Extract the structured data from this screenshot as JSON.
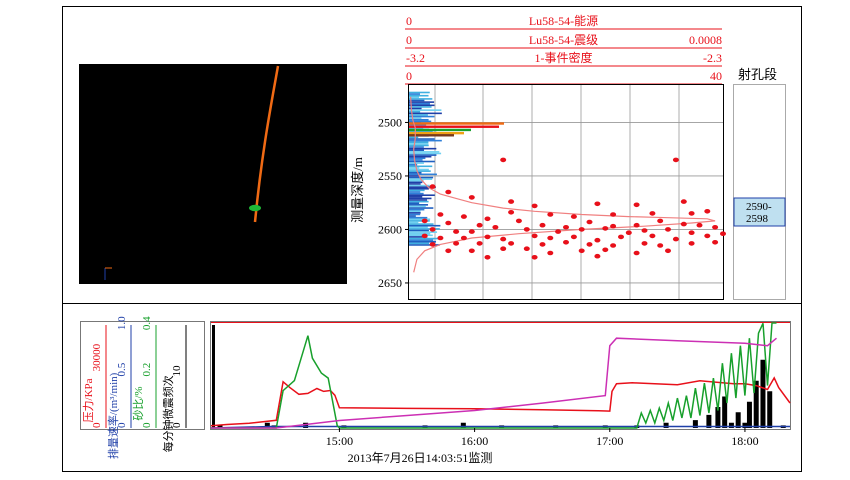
{
  "colors": {
    "red": "#e8101a",
    "blue": "#1f3fa8",
    "green": "#18a02c",
    "black": "#000000",
    "magenta": "#cc2fb4",
    "orange": "#f06a14",
    "seis_green": "#1fb836",
    "perf_box": "#bfe0f0",
    "pink": "#f08080"
  },
  "scale_bars": [
    {
      "left": "0",
      "title": "Lu58-54-能源",
      "right": ""
    },
    {
      "left": "0",
      "title": "Lu58-54-震级",
      "right": "0.0008"
    },
    {
      "left": "-3.2",
      "title": "1-事件密度",
      "right": "-2.3"
    },
    {
      "left": "0",
      "title": "",
      "right": "40"
    }
  ],
  "depth_axis": {
    "label": "测量深度/m",
    "ticks": [
      "2500",
      "2550",
      "2600",
      "2650"
    ]
  },
  "perforation": {
    "title": "射孔段",
    "label_line1": "2590-",
    "label_line2": "2598"
  },
  "left_axes": [
    {
      "label": "压力/KPa",
      "ticks": [
        "0",
        "30000"
      ],
      "color": "#e8101a"
    },
    {
      "label": "排量速率/(m³/min)",
      "ticks": [
        "0",
        "0.5",
        "1.0"
      ],
      "color": "#1f3fa8"
    },
    {
      "label": "砂比/%",
      "ticks": [
        "0",
        "0.2",
        "0.4"
      ],
      "color": "#18a02c"
    },
    {
      "label": "每分钟微震频次",
      "ticks": [
        "0",
        "10"
      ],
      "color": "#000000"
    }
  ],
  "time_axis": {
    "ticks": [
      "15:00",
      "16:00",
      "17:00",
      "18:00"
    ]
  },
  "caption": "2013年7月26日14:03:51监测",
  "chart_data": [
    {
      "type": "scatter",
      "title": "",
      "ylabel": "测量深度/m",
      "ylim": [
        2665,
        2465
      ],
      "xlim": [
        0,
        40
      ],
      "points": [
        [
          12,
          2535
        ],
        [
          34,
          2535
        ],
        [
          3,
          2560
        ],
        [
          5,
          2565
        ],
        [
          8,
          2570
        ],
        [
          13,
          2574
        ],
        [
          16,
          2578
        ],
        [
          24,
          2576
        ],
        [
          29,
          2577
        ],
        [
          35,
          2574
        ],
        [
          38,
          2583
        ],
        [
          4,
          2586
        ],
        [
          7,
          2588
        ],
        [
          10,
          2590
        ],
        [
          13,
          2584
        ],
        [
          18,
          2586
        ],
        [
          21,
          2588
        ],
        [
          26,
          2586
        ],
        [
          31,
          2585
        ],
        [
          36,
          2585
        ],
        [
          2,
          2592
        ],
        [
          5,
          2594
        ],
        [
          9,
          2596
        ],
        [
          14,
          2592
        ],
        [
          17,
          2596
        ],
        [
          20,
          2598
        ],
        [
          23,
          2593
        ],
        [
          26,
          2597
        ],
        [
          29,
          2596
        ],
        [
          32,
          2592
        ],
        [
          35,
          2595
        ],
        [
          37,
          2596
        ],
        [
          3,
          2600
        ],
        [
          6,
          2602
        ],
        [
          8,
          2602
        ],
        [
          11,
          2598
        ],
        [
          15,
          2600
        ],
        [
          19,
          2602
        ],
        [
          22,
          2600
        ],
        [
          25,
          2599
        ],
        [
          28,
          2603
        ],
        [
          30,
          2601
        ],
        [
          33,
          2600
        ],
        [
          36,
          2603
        ],
        [
          39,
          2598
        ],
        [
          2,
          2606
        ],
        [
          4,
          2608
        ],
        [
          7,
          2608
        ],
        [
          10,
          2607
        ],
        [
          12,
          2609
        ],
        [
          16,
          2606
        ],
        [
          18,
          2608
        ],
        [
          21,
          2607
        ],
        [
          24,
          2610
        ],
        [
          27,
          2607
        ],
        [
          31,
          2606
        ],
        [
          34,
          2609
        ],
        [
          38,
          2606
        ],
        [
          40,
          2604
        ],
        [
          3,
          2614
        ],
        [
          6,
          2613
        ],
        [
          9,
          2613
        ],
        [
          13,
          2613
        ],
        [
          17,
          2614
        ],
        [
          20,
          2612
        ],
        [
          23,
          2614
        ],
        [
          26,
          2615
        ],
        [
          30,
          2613
        ],
        [
          32,
          2615
        ],
        [
          36,
          2613
        ],
        [
          39,
          2612
        ],
        [
          5,
          2620
        ],
        [
          8,
          2620
        ],
        [
          12,
          2618
        ],
        [
          15,
          2618
        ],
        [
          18,
          2622
        ],
        [
          22,
          2620
        ],
        [
          25,
          2619
        ],
        [
          29,
          2622
        ],
        [
          33,
          2620
        ],
        [
          10,
          2626
        ],
        [
          16,
          2626
        ],
        [
          24,
          2625
        ]
      ],
      "pink_curve_x": [
        0.2,
        0.3,
        0.5,
        0.8,
        0.8,
        0.6,
        0.7,
        1.0,
        1.5,
        2.5,
        4,
        6,
        8,
        12,
        16,
        22,
        28,
        33,
        38,
        39,
        36,
        30,
        22,
        14,
        8,
        4,
        2,
        1,
        0.6
      ],
      "pink_curve_depth": [
        2476,
        2488,
        2498,
        2505,
        2515,
        2525,
        2535,
        2545,
        2553,
        2561,
        2567,
        2571,
        2575,
        2580,
        2583,
        2586,
        2588,
        2589,
        2590,
        2592,
        2594,
        2597,
        2600,
        2604,
        2608,
        2614,
        2620,
        2628,
        2640
      ]
    },
    {
      "type": "line",
      "title": "",
      "xlabel": "",
      "x_range": [
        "14:03",
        "18:20"
      ],
      "series": [
        {
          "color": "#e8101a",
          "axis": "压力/KPa",
          "x": [
            "14:03",
            "14:10",
            "14:20",
            "14:32",
            "14:35",
            "14:38",
            "14:42",
            "14:46",
            "14:50",
            "14:53",
            "14:56",
            "14:58",
            "15:00",
            "15:30",
            "16:00",
            "16:30",
            "16:55",
            "17:00",
            "17:01",
            "17:03",
            "17:10",
            "17:20",
            "17:30",
            "17:40",
            "17:50",
            "17:55",
            "18:00",
            "18:05",
            "18:10",
            "18:13",
            "18:15",
            "18:20"
          ],
          "y": [
            1200,
            1800,
            2500,
            4000,
            24000,
            21000,
            17500,
            18000,
            20500,
            19000,
            19500,
            17000,
            10500,
            10200,
            10000,
            9500,
            9000,
            8800,
            19000,
            23000,
            23500,
            23000,
            22500,
            24500,
            23500,
            23000,
            23000,
            22000,
            20000,
            26000,
            21000,
            13000
          ]
        },
        {
          "color": "#1f3fa8",
          "axis": "排量速率/(m³/min)",
          "x": [
            "14:03",
            "14:30",
            "18:20"
          ],
          "y": [
            0.0,
            0.015,
            0.015
          ]
        },
        {
          "color": "#18a02c",
          "axis": "砂比/%",
          "x": [
            "14:03",
            "14:32",
            "14:35",
            "14:40",
            "14:46",
            "14:48",
            "14:52",
            "14:55",
            "14:59",
            "15:00",
            "17:12",
            "17:14",
            "17:16",
            "17:18",
            "17:20",
            "17:22",
            "17:24",
            "17:26",
            "17:28",
            "17:30",
            "17:32",
            "17:34",
            "17:36",
            "17:38",
            "17:40",
            "17:42",
            "17:44",
            "17:46",
            "17:48",
            "17:50",
            "17:52",
            "17:54",
            "17:56",
            "17:58",
            "18:00",
            "18:02",
            "18:04",
            "18:06",
            "18:08",
            "18:10",
            "18:12",
            "18:14"
          ],
          "y": [
            0.0,
            0.0,
            0.15,
            0.19,
            0.37,
            0.28,
            0.22,
            0.2,
            0.01,
            0.0,
            0.0,
            0.06,
            0.02,
            0.07,
            0.02,
            0.08,
            0.03,
            0.1,
            0.03,
            0.12,
            0.04,
            0.13,
            0.04,
            0.16,
            0.05,
            0.18,
            0.06,
            0.2,
            0.07,
            0.26,
            0.1,
            0.3,
            0.12,
            0.33,
            0.13,
            0.36,
            0.14,
            0.38,
            0.42,
            0.17,
            0.45,
            0.46
          ]
        },
        {
          "color": "#cc2fb4",
          "axis": "砂比/%",
          "x": [
            "14:03",
            "14:32",
            "15:00",
            "15:30",
            "16:00",
            "16:30",
            "16:58",
            "17:00",
            "17:03",
            "17:30",
            "18:00",
            "18:10",
            "18:14"
          ],
          "y": [
            0.0,
            0.0,
            0.03,
            0.05,
            0.07,
            0.1,
            0.13,
            0.33,
            0.36,
            0.35,
            0.34,
            0.33,
            0.36
          ]
        }
      ],
      "bars": {
        "color": "#000000",
        "x": [
          "14:07",
          "14:28",
          "14:31",
          "14:45",
          "15:02",
          "15:38",
          "15:55",
          "16:12",
          "16:36",
          "16:58",
          "17:12",
          "17:25",
          "17:38",
          "17:44",
          "17:48",
          "17:51",
          "17:54",
          "17:57",
          "18:00",
          "18:02",
          "18:05",
          "18:08",
          "18:11",
          "18:17"
        ],
        "y": [
          1,
          2,
          1,
          2,
          1,
          1,
          2,
          1,
          1,
          1,
          1,
          2,
          3,
          5,
          8,
          12,
          2,
          6,
          2,
          10,
          18,
          26,
          14,
          1
        ]
      }
    }
  ]
}
